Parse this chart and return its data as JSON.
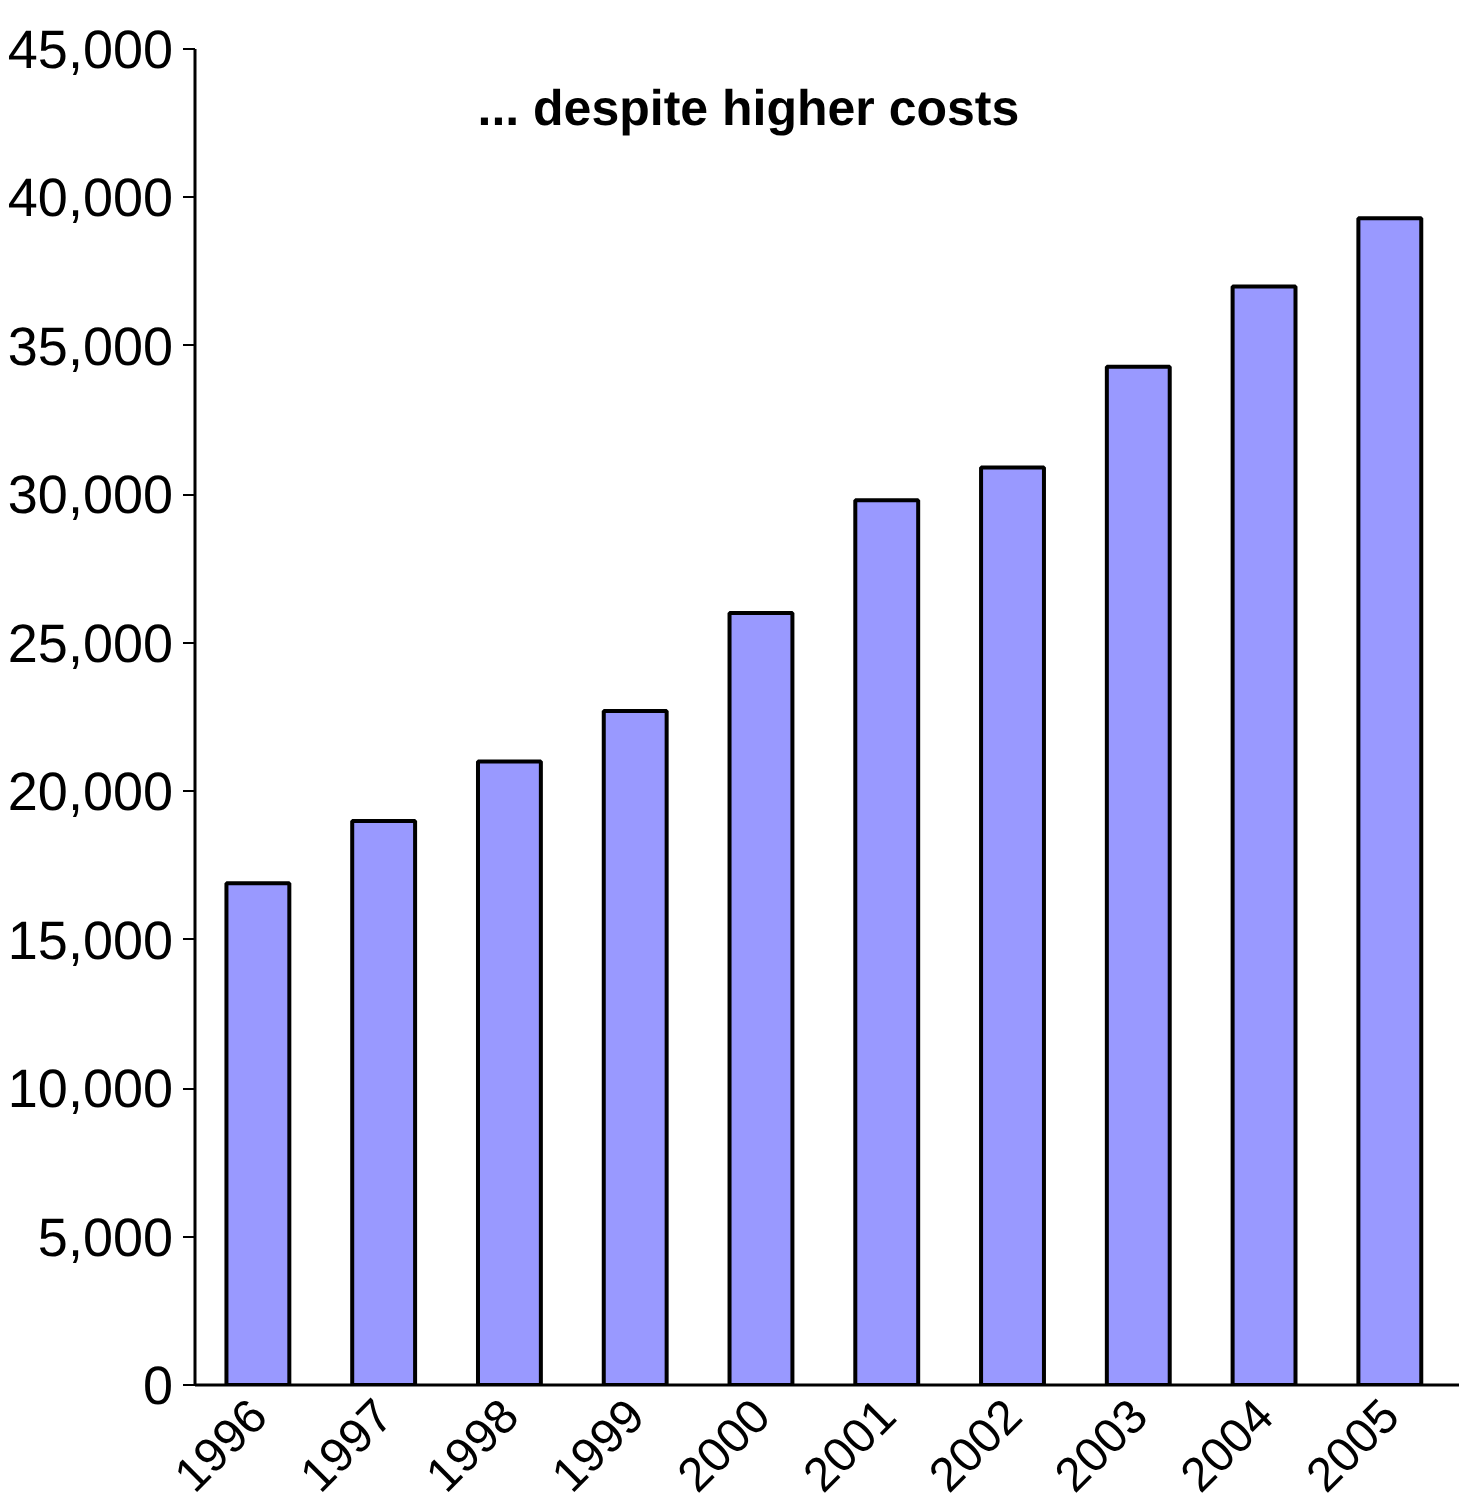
{
  "chart_data": {
    "type": "bar",
    "title": "... despite higher costs",
    "categories": [
      "1996",
      "1997",
      "1998",
      "1999",
      "2000",
      "2001",
      "2002",
      "2003",
      "2004",
      "2005"
    ],
    "values": [
      16900,
      19000,
      21000,
      22700,
      26000,
      29800,
      30900,
      34300,
      37000,
      39300
    ],
    "color": "#9999ff",
    "ylim": [
      0,
      45000
    ],
    "yticks": [
      0,
      {
        "value": 5000,
        "label": "5,000"
      },
      {
        "value": 10000,
        "label": "10,000"
      },
      {
        "value": 15000,
        "label": "15,000"
      },
      {
        "value": 20000,
        "label": "20,000"
      },
      {
        "value": 25000,
        "label": "25,000"
      },
      {
        "value": 30000,
        "label": "30,000"
      },
      {
        "value": 35000,
        "label": "35,000"
      },
      {
        "value": 40000,
        "label": "40,000"
      },
      {
        "value": 45000,
        "label": "45,000"
      }
    ],
    "grid": false
  }
}
